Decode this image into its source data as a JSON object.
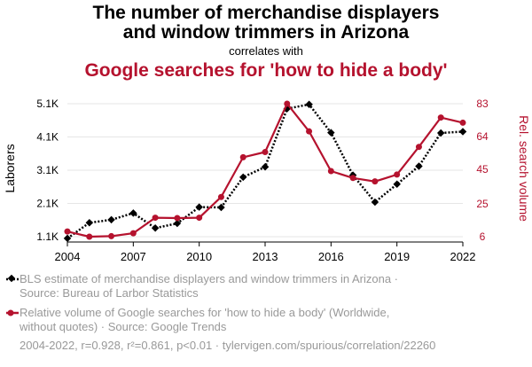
{
  "header": {
    "title_line1": "The number of merchandise displayers",
    "title_line2": "and window trimmers in Arizona",
    "subtitle": "correlates with",
    "headline": "Google searches for 'how to hide a body'"
  },
  "chart_data": {
    "type": "line",
    "x": [
      2004,
      2005,
      2006,
      2007,
      2008,
      2009,
      2010,
      2011,
      2012,
      2013,
      2014,
      2015,
      2016,
      2017,
      2018,
      2019,
      2020,
      2021,
      2022
    ],
    "x_ticks": [
      "2004",
      "2007",
      "2010",
      "2013",
      "2016",
      "2019",
      "2022"
    ],
    "x_tick_values": [
      2004,
      2007,
      2010,
      2013,
      2016,
      2019,
      2022
    ],
    "series": [
      {
        "name": "BLS estimate of merchandise displayers and window trimmers in Arizona · Source: Bureau of Larbor Statistics",
        "axis": "left",
        "color": "#000000",
        "style": "dotted",
        "marker": "diamond",
        "values": [
          1050,
          1520,
          1610,
          1810,
          1360,
          1500,
          1990,
          1980,
          2890,
          3200,
          4950,
          5080,
          4230,
          2950,
          2140,
          2680,
          3220,
          4220,
          4260
        ]
      },
      {
        "name": "Relative volume of Google searches for 'how to hide a body' (Worldwide, without quotes) · Source: Google Trends",
        "axis": "right",
        "color": "#b5122e",
        "style": "solid",
        "marker": "circle",
        "values": [
          9,
          6,
          6.3,
          8,
          17,
          16.8,
          17,
          29,
          52,
          55,
          83,
          67,
          44,
          40,
          38,
          42,
          58,
          75,
          72
        ]
      }
    ],
    "y_left": {
      "label": "Laborers",
      "ticks": [
        "1.1K",
        "2.1K",
        "3.1K",
        "4.1K",
        "5.1K"
      ],
      "tick_values": [
        1100,
        2100,
        3100,
        4100,
        5100
      ],
      "lim": [
        1100,
        5100
      ]
    },
    "y_right": {
      "label": "Rel. search volume",
      "ticks": [
        "6",
        "25",
        "45",
        "64",
        "83"
      ],
      "tick_values": [
        6,
        25,
        45,
        64,
        83
      ],
      "lim": [
        6,
        83
      ]
    },
    "grid": "horizontal",
    "xlim": [
      2004,
      2022
    ]
  },
  "legend": {
    "black_line1": "BLS estimate of merchandise displayers and window trimmers in Arizona ·",
    "black_line2": "Source: Bureau of Larbor Statistics",
    "red_line1": "Relative volume of Google searches for 'how to hide a body' (Worldwide,",
    "red_line2": "without quotes) · Source: Google Trends"
  },
  "footer": "2004-2022, r=0.928, r²=0.861, p<0.01 · tylervigen.com/spurious/correlation/22260"
}
